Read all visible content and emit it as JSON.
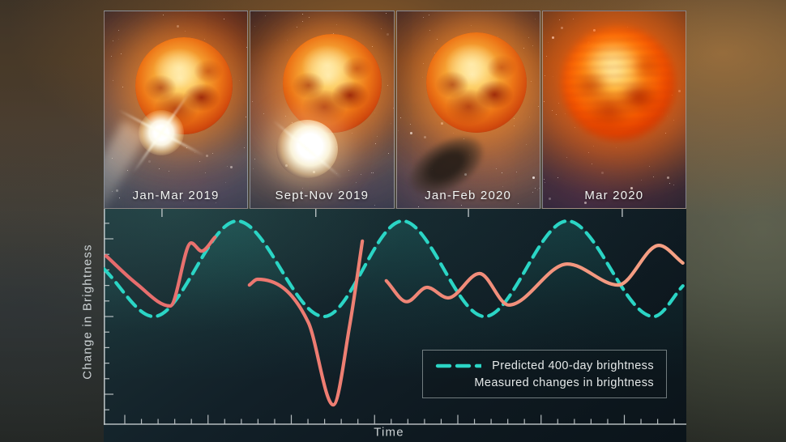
{
  "panels": [
    {
      "label": "Jan-Mar 2019"
    },
    {
      "label": "Sept-Nov 2019"
    },
    {
      "label": "Jan-Feb 2020"
    },
    {
      "label": "Mar 2020"
    }
  ],
  "colors": {
    "predicted_line": "#2bd5c5",
    "measured_line_start": "#e66a6c",
    "measured_line_end": "#f6a285",
    "axis": "#ccd2d4",
    "panel_label": "#f2f4f2"
  },
  "chart_data": {
    "type": "line",
    "title": "",
    "xlabel": "Time",
    "ylabel": "Change in Brightness",
    "axis_note": "Axes are unlabeled (no numeric ticks). x = percent along time axis (0-100); y = relative brightness where the predicted 400-day cycle spans -1 (dim) to +1 (bright).",
    "legend_position": "lower right",
    "grid": false,
    "series": [
      {
        "name": "Predicted 400-day brightness",
        "style": "dashed",
        "color": "#2bd5c5",
        "points": [
          [
            0,
            0.0
          ],
          [
            8.6,
            -1.0
          ],
          [
            22.9,
            1.0
          ],
          [
            37.8,
            -1.0
          ],
          [
            51.3,
            1.0
          ],
          [
            65.4,
            -1.0
          ],
          [
            79.6,
            1.0
          ],
          [
            94.4,
            -1.0
          ],
          [
            99.4,
            -0.36
          ]
        ]
      },
      {
        "name": "Measured changes in brightness",
        "style": "solid",
        "color": "#ef8073",
        "segments": [
          [
            [
              0.4,
              0.27
            ],
            [
              5.6,
              -0.31
            ],
            [
              11.4,
              -0.78
            ],
            [
              15.0,
              0.54
            ],
            [
              16.8,
              0.37
            ],
            [
              19.1,
              0.66
            ]
          ],
          [
            [
              25.0,
              -0.34
            ],
            [
              26.4,
              -0.22
            ],
            [
              35.1,
              -1.12
            ],
            [
              39.4,
              -2.85
            ],
            [
              42.2,
              -1.2
            ],
            [
              44.4,
              0.58
            ]
          ],
          [
            [
              48.5,
              -0.25
            ],
            [
              52.0,
              -0.69
            ],
            [
              55.5,
              -0.39
            ],
            [
              59.1,
              -0.61
            ],
            [
              64.5,
              -0.1
            ],
            [
              69.5,
              -0.76
            ],
            [
              79.6,
              0.1
            ],
            [
              88.3,
              -0.34
            ],
            [
              95.3,
              0.49
            ],
            [
              99.4,
              0.12
            ]
          ]
        ]
      }
    ],
    "panel_time_markers": [
      10.0,
      36.4,
      62.6,
      89.0
    ]
  }
}
